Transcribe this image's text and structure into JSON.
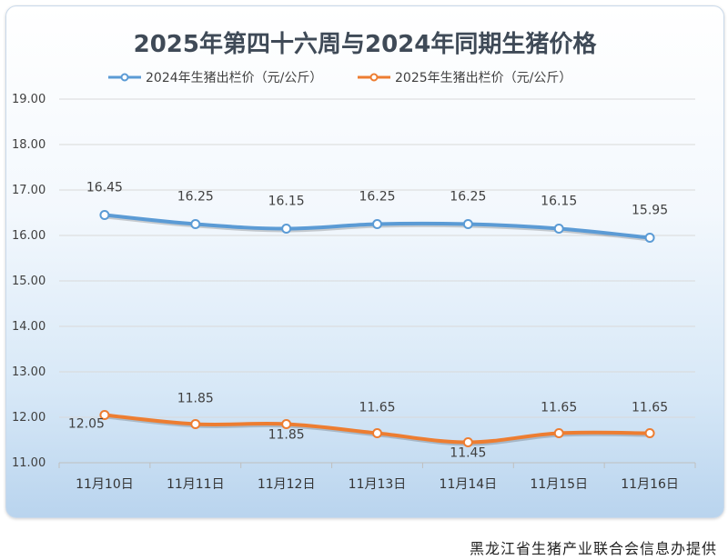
{
  "chart_data": {
    "type": "line",
    "title": "2025年第四十六周与2024年同期生猪价格",
    "categories": [
      "11月10日",
      "11月11日",
      "11月12日",
      "11月13日",
      "11月14日",
      "11月15日",
      "11月16日"
    ],
    "series": [
      {
        "name": "2024年生猪出栏价（元/公斤）",
        "color": "#5b9bd5",
        "values": [
          16.45,
          16.25,
          16.15,
          16.25,
          16.25,
          16.15,
          15.95
        ],
        "labels": [
          "16.45",
          "16.25",
          "16.15",
          "16.25",
          "16.25",
          "16.15",
          "15.95"
        ]
      },
      {
        "name": "2025年生猪出栏价（元/公斤）",
        "color": "#ed7d31",
        "values": [
          12.05,
          11.85,
          11.85,
          11.65,
          11.45,
          11.65,
          11.65
        ],
        "labels": [
          "12.05",
          "11.85",
          "11.85",
          "11.65",
          "11.45",
          "11.65",
          "11.65"
        ]
      }
    ],
    "yticks": [
      "19.00",
      "18.00",
      "17.00",
      "16.00",
      "15.00",
      "14.00",
      "13.00",
      "12.00",
      "11.00"
    ],
    "ylim": [
      11,
      19
    ],
    "grid": true,
    "legend_position": "top"
  },
  "footer": {
    "source": "黑龙江省生猪产业联合会信息办提供"
  }
}
